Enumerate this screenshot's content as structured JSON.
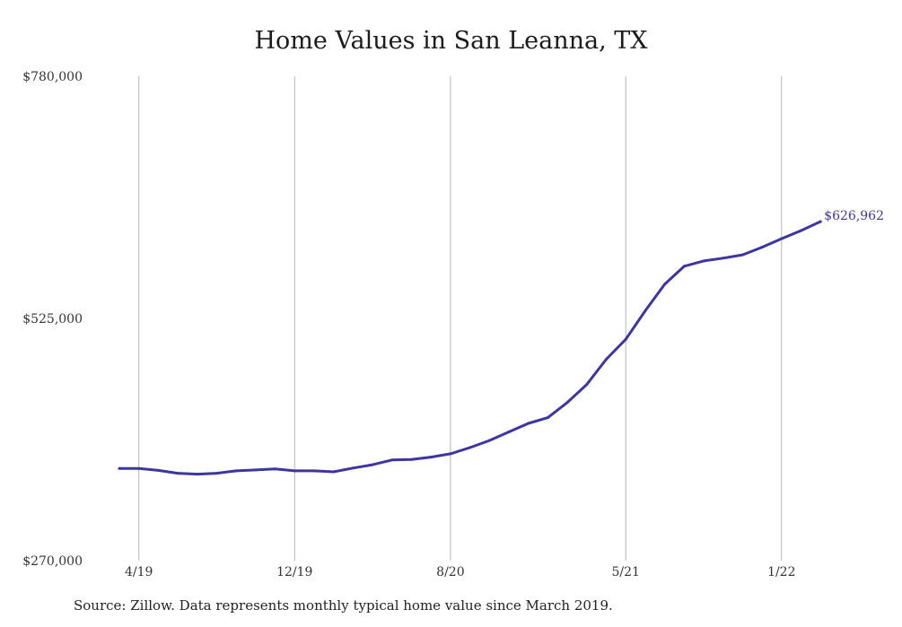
{
  "chart_data": {
    "type": "line",
    "title": "Home Values in San Leanna, TX",
    "xlabel": "",
    "ylabel": "",
    "ylim": [
      270000,
      780000
    ],
    "y_ticks": [
      "$780,000",
      "$525,000",
      "$270,000"
    ],
    "y_tick_values": [
      780000,
      525000,
      270000
    ],
    "x_ticks": [
      "4/19",
      "12/19",
      "8/20",
      "5/21",
      "1/22"
    ],
    "x_tick_dates": [
      "2019-04",
      "2019-12",
      "2020-08",
      "2021-05",
      "2022-01"
    ],
    "grid": "vertical",
    "line_color": "#3d35a0",
    "series": [
      {
        "x": [
          "2019-03",
          "2019-04",
          "2019-05",
          "2019-06",
          "2019-07",
          "2019-08",
          "2019-09",
          "2019-10",
          "2019-11",
          "2019-12",
          "2020-01",
          "2020-02",
          "2020-03",
          "2020-04",
          "2020-05",
          "2020-06",
          "2020-07",
          "2020-08",
          "2020-09",
          "2020-10",
          "2020-11",
          "2020-12",
          "2021-01",
          "2021-02",
          "2021-03",
          "2021-04",
          "2021-05",
          "2021-06",
          "2021-07",
          "2021-08",
          "2021-09",
          "2021-10",
          "2021-11",
          "2021-12",
          "2022-01",
          "2022-02",
          "2022-03"
        ],
        "values": [
          367000,
          367000,
          365000,
          362000,
          361000,
          362000,
          364500,
          365500,
          366500,
          364500,
          364500,
          363500,
          367500,
          371000,
          376000,
          376500,
          379000,
          382500,
          389000,
          396500,
          405500,
          414500,
          420500,
          436500,
          455500,
          482000,
          503000,
          533000,
          561000,
          580000,
          585500,
          588500,
          592000,
          600000,
          609000,
          617500,
          626962
        ]
      }
    ],
    "end_label": "$626,962",
    "source_note": "Source: Zillow. Data represents monthly typical home value since March 2019."
  }
}
